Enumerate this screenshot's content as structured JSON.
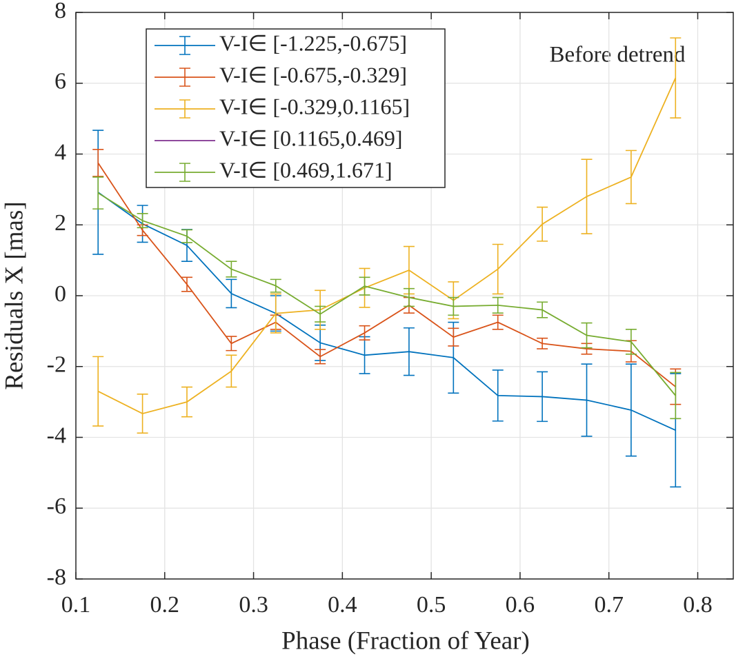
{
  "chart_data": {
    "type": "errorbar",
    "annotation": "Before detrend",
    "xlabel": "Phase (Fraction of Year)",
    "ylabel": "Residuals X [mas]",
    "x": [
      0.125,
      0.175,
      0.225,
      0.275,
      0.325,
      0.375,
      0.425,
      0.475,
      0.525,
      0.575,
      0.625,
      0.675,
      0.725,
      0.775
    ],
    "series": [
      {
        "name": "V-I∈ [-1.225,-0.675]",
        "color": "#0072BD",
        "values": [
          2.92,
          2.03,
          1.42,
          0.06,
          -0.5,
          -1.33,
          -1.68,
          -1.58,
          -1.75,
          -2.82,
          -2.85,
          -2.95,
          -3.23,
          -3.8
        ],
        "errors": [
          1.75,
          0.52,
          0.45,
          0.4,
          0.5,
          0.5,
          0.52,
          0.67,
          1.0,
          0.72,
          0.7,
          1.02,
          1.3,
          1.6
        ]
      },
      {
        "name": "V-I∈ [-0.675,-0.329]",
        "color": "#D95319",
        "values": [
          3.75,
          1.85,
          0.32,
          -1.35,
          -0.75,
          -1.72,
          -1.05,
          -0.27,
          -1.17,
          -0.75,
          -1.35,
          -1.5,
          -1.57,
          -2.57
        ],
        "errors": [
          0.38,
          0.15,
          0.2,
          0.2,
          0.2,
          0.2,
          0.2,
          0.22,
          0.25,
          0.2,
          0.15,
          0.15,
          0.3,
          0.5
        ]
      },
      {
        "name": "V-I∈ [-0.329,0.1165]",
        "color": "#EDB120",
        "values": [
          -2.7,
          -3.33,
          -3.0,
          -2.13,
          -0.5,
          -0.4,
          0.22,
          0.72,
          -0.13,
          0.75,
          2.02,
          2.8,
          3.35,
          6.15
        ],
        "errors": [
          0.98,
          0.55,
          0.42,
          0.45,
          0.55,
          0.55,
          0.55,
          0.67,
          0.52,
          0.7,
          0.48,
          1.05,
          0.75,
          1.13
        ]
      },
      {
        "name": "V-I∈ [0.1165,0.469]",
        "color": "#7E2F8E",
        "values": [
          null,
          null,
          null,
          null,
          null,
          null,
          null,
          null,
          null,
          null,
          null,
          null,
          null,
          null
        ],
        "errors": [
          null,
          null,
          null,
          null,
          null,
          null,
          null,
          null,
          null,
          null,
          null,
          null,
          null,
          null
        ]
      },
      {
        "name": "V-I∈ [0.469,1.671]",
        "color": "#77AC30",
        "values": [
          2.9,
          2.12,
          1.68,
          0.75,
          0.28,
          -0.52,
          0.27,
          -0.05,
          -0.3,
          -0.27,
          -0.4,
          -1.12,
          -1.3,
          -2.82
        ],
        "errors": [
          0.45,
          0.2,
          0.18,
          0.22,
          0.18,
          0.22,
          0.25,
          0.25,
          0.25,
          0.22,
          0.22,
          0.35,
          0.35,
          0.65
        ]
      }
    ],
    "xlim": [
      0.1,
      0.84
    ],
    "xticks": [
      0.1,
      0.2,
      0.3,
      0.4,
      0.5,
      0.6,
      0.7,
      0.8
    ],
    "ylim": [
      -8,
      8
    ],
    "yticks": [
      -8,
      -6,
      -4,
      -2,
      0,
      2,
      4,
      6,
      8
    ],
    "grid": true,
    "legend": "upper left"
  }
}
